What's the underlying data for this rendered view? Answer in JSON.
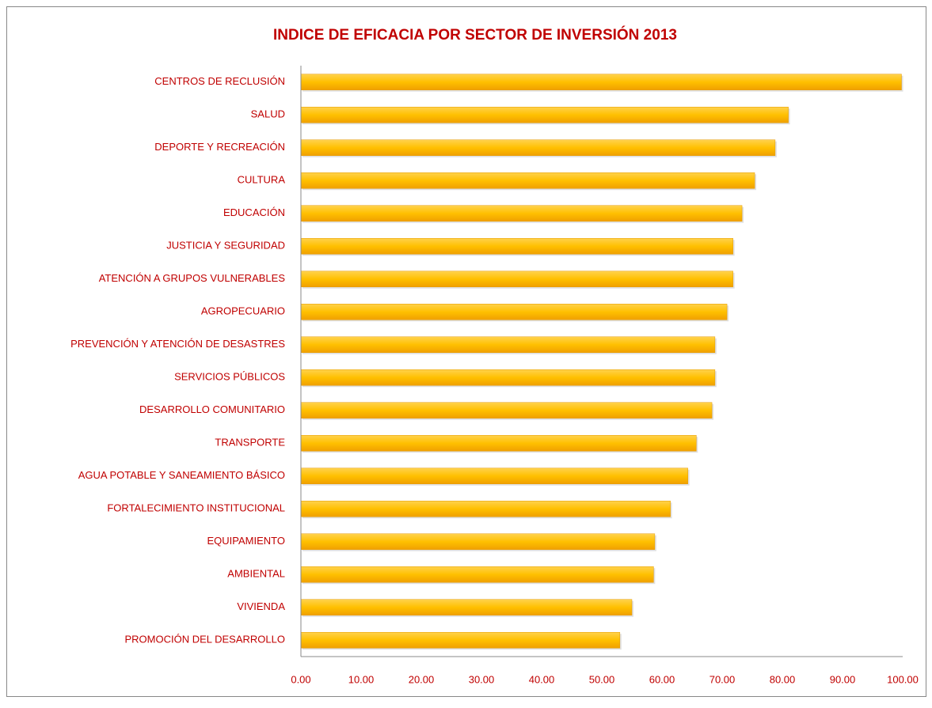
{
  "chart_data": {
    "type": "bar",
    "orientation": "horizontal",
    "title": "INDICE DE EFICACIA POR SECTOR DE INVERSIÓN 2013",
    "categories": [
      "CENTROS DE RECLUSIÓN",
      "SALUD",
      "DEPORTE Y RECREACIÓN",
      "CULTURA",
      "EDUCACIÓN",
      "JUSTICIA Y SEGURIDAD",
      "ATENCIÓN A GRUPOS VULNERABLES",
      "AGROPECUARIO",
      "PREVENCIÓN Y ATENCIÓN DE DESASTRES",
      "SERVICIOS PÚBLICOS",
      "DESARROLLO COMUNITARIO",
      "TRANSPORTE",
      "AGUA POTABLE  Y SANEAMIENTO BÁSICO",
      "FORTALECIMIENTO INSTITUCIONAL",
      "EQUIPAMIENTO",
      "AMBIENTAL",
      "VIVIENDA",
      "PROMOCIÓN DEL DESARROLLO"
    ],
    "values": [
      99.8,
      81.0,
      78.8,
      75.4,
      73.3,
      71.8,
      71.8,
      70.8,
      68.8,
      68.8,
      68.3,
      65.7,
      64.3,
      61.4,
      58.8,
      58.6,
      55.0,
      53.0
    ],
    "color": "#ffc000",
    "xlim": [
      0,
      100
    ],
    "xticks": [
      {
        "value": 0,
        "label": "0.00"
      },
      {
        "value": 10,
        "label": "10.00"
      },
      {
        "value": 20,
        "label": "20.00"
      },
      {
        "value": 30,
        "label": "30.00"
      },
      {
        "value": 40,
        "label": "40.00"
      },
      {
        "value": 50,
        "label": "50.00"
      },
      {
        "value": 60,
        "label": "60.00"
      },
      {
        "value": 70,
        "label": "70.00"
      },
      {
        "value": 80,
        "label": "80.00"
      },
      {
        "value": 90,
        "label": "90.00"
      },
      {
        "value": 100,
        "label": "100.00"
      }
    ],
    "grid": false
  }
}
